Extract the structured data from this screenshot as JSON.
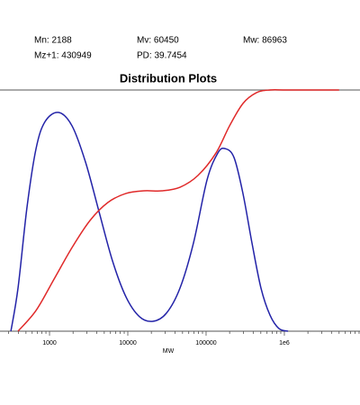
{
  "chart_data": {
    "type": "line",
    "title": "Distribution Plots",
    "annotations": [
      "Mn: 2188",
      "Mv: 60450",
      "Mw: 86963",
      "Mz+1: 430949",
      "PD: 39.7454"
    ],
    "xlabel": "MW",
    "xscale": "log",
    "xlim": [
      233,
      9250000
    ],
    "ylim": [
      0,
      1
    ],
    "xticks": [
      1000,
      10000,
      100000,
      {
        "value": 1000000,
        "label": "1e6"
      }
    ],
    "xminorticks": [
      300,
      400,
      500,
      600,
      700,
      800,
      900,
      2000,
      3000,
      4000,
      5000,
      6000,
      7000,
      8000,
      9000,
      20000,
      30000,
      40000,
      50000,
      60000,
      70000,
      80000,
      90000,
      200000,
      300000,
      400000,
      500000,
      600000,
      700000,
      800000,
      900000,
      2000000,
      3000000,
      4000000,
      5000000,
      6000000,
      7000000,
      8000000,
      9000000
    ],
    "series": [
      {
        "color": "#2323a8",
        "x": [
          321,
          396,
          516,
          673,
          877,
          1303,
          1941,
          2884,
          4285,
          6383,
          9484,
          14125,
          20989,
          31189,
          46452,
          69024,
          102802,
          141254,
          174582,
          227510,
          295801,
          385478,
          502343,
          654636,
          853067,
          1111732
        ],
        "values": [
          0,
          0.179,
          0.515,
          0.757,
          0.869,
          0.907,
          0.851,
          0.701,
          0.496,
          0.291,
          0.142,
          0.06,
          0.041,
          0.075,
          0.179,
          0.366,
          0.627,
          0.739,
          0.757,
          0.72,
          0.571,
          0.366,
          0.179,
          0.067,
          0.011,
          0
        ]
      },
      {
        "color": "#e02a2a",
        "x": [
          396,
          673,
          1143,
          1941,
          3289,
          5585,
          9484,
          16106,
          27353,
          46452,
          78886,
          133968,
          199067,
          295801,
          440555,
          654636,
          1111732,
          5000000
        ],
        "values": [
          0,
          0.086,
          0.216,
          0.347,
          0.459,
          0.534,
          0.571,
          0.582,
          0.582,
          0.597,
          0.646,
          0.739,
          0.851,
          0.944,
          0.989,
          1,
          1,
          1
        ]
      }
    ]
  }
}
